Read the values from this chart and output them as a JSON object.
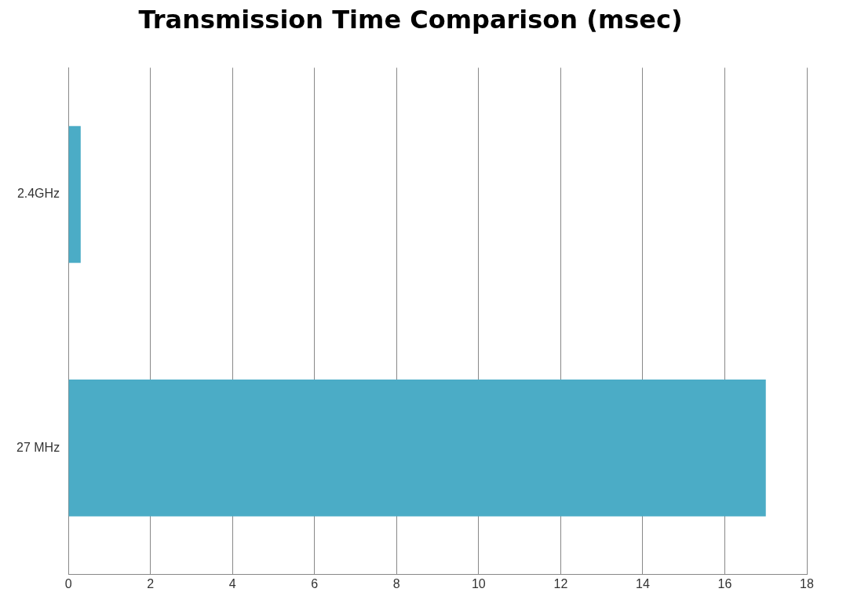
{
  "chart_data": {
    "type": "bar",
    "orientation": "horizontal",
    "title": "Transmission Time Comparison (msec)",
    "categories": [
      "2.4GHz",
      "27 MHz"
    ],
    "values": [
      0.3,
      17
    ],
    "color": "#4bacc6",
    "xlim": [
      0,
      18
    ],
    "xticks": [
      0,
      2,
      4,
      6,
      8,
      10,
      12,
      14,
      16,
      18
    ],
    "grid": "x",
    "legend": false
  }
}
